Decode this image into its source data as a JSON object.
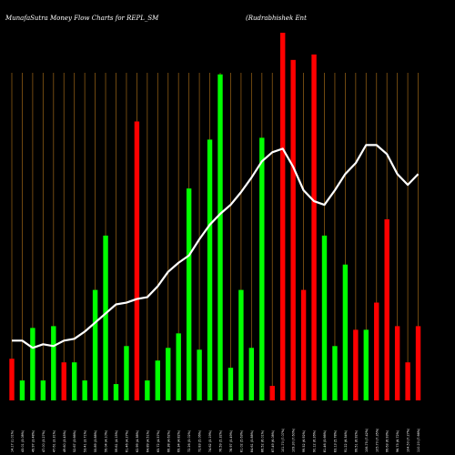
{
  "chart_data": {
    "type": "bar",
    "title_left": "MunafaSutra  Money Flow  Charts for REPL_SM",
    "title_right": "(Rudrabhishek Ent",
    "xlabel": "",
    "ylabel": "",
    "grid": true,
    "colors": {
      "up": "#00ff00",
      "down": "#ff0000",
      "line": "#ffffff",
      "grid": "#8b5a14",
      "background": "#000000"
    },
    "categories": [
      "14.17 (1.01%)",
      "43.01 (3.08%)",
      "49.97 (3.48%)",
      "47.00 (3.27%)",
      "47.61 (3.31%)",
      "49.60 (3.45%)",
      "52.67 (3.66%)",
      "53.41 (3.71%)",
      "55.89 (3.88%)",
      "59.04 (4.10%)",
      "59.61 (4.15%)",
      "61.46 (4.27%)",
      "62.99 (4.38%)",
      "64.89 (4.51%)",
      "65.72 (4.57%)",
      "66.38 (4.62%)",
      "69.34 (4.82%)",
      "72.26 (5.02%)",
      "72.83 (5.06%)",
      "74.62 (5.19%)",
      "76.59 (5.32%)",
      "78.97 (5.49%)",
      "81.02 (5.63%)",
      "84.61 (5.88%)",
      "86.52 (6.01%)",
      "87.49 (6.08%)",
      "101.70 (7.07%)",
      "109.30 (7.60%)",
      "99.52 (6.92%)",
      "90.12 (6.26%)",
      "81.46 (5.66%)",
      "83.13 (5.78%)",
      "91.22 (6.34%)",
      "99.51 (6.92%)",
      "106.75 (7.42%)",
      "105.70 (7.35%)",
      "99.63 (6.93%)",
      "96.73 (6.72%)",
      "104.50 (7.27%)",
      "110.20 (7.66%)"
    ],
    "values": [
      23,
      11,
      40,
      11,
      41,
      21,
      21,
      11,
      61,
      91,
      9,
      30,
      154,
      11,
      22,
      29,
      37,
      117,
      28,
      144,
      180,
      18,
      61,
      29,
      145,
      8,
      203,
      188,
      61,
      191,
      91,
      30,
      75,
      39,
      39,
      54,
      100,
      41,
      21,
      41
    ],
    "directions": [
      "down",
      "up",
      "up",
      "up",
      "up",
      "down",
      "up",
      "up",
      "up",
      "up",
      "up",
      "up",
      "down",
      "up",
      "up",
      "up",
      "up",
      "up",
      "up",
      "up",
      "up",
      "up",
      "up",
      "up",
      "up",
      "down",
      "down",
      "down",
      "down",
      "down",
      "up",
      "up",
      "up",
      "down",
      "up",
      "down",
      "down",
      "down",
      "down",
      "down"
    ],
    "line_values": [
      33,
      33,
      29,
      31,
      30,
      33,
      34,
      38,
      43,
      48,
      53,
      54,
      56,
      57,
      63,
      71,
      76,
      80,
      89,
      97,
      103,
      108,
      115,
      123,
      132,
      137,
      139,
      129,
      116,
      110,
      108,
      116,
      125,
      131,
      141,
      141,
      136,
      125,
      119,
      125
    ],
    "ylim": [
      0,
      205
    ]
  }
}
